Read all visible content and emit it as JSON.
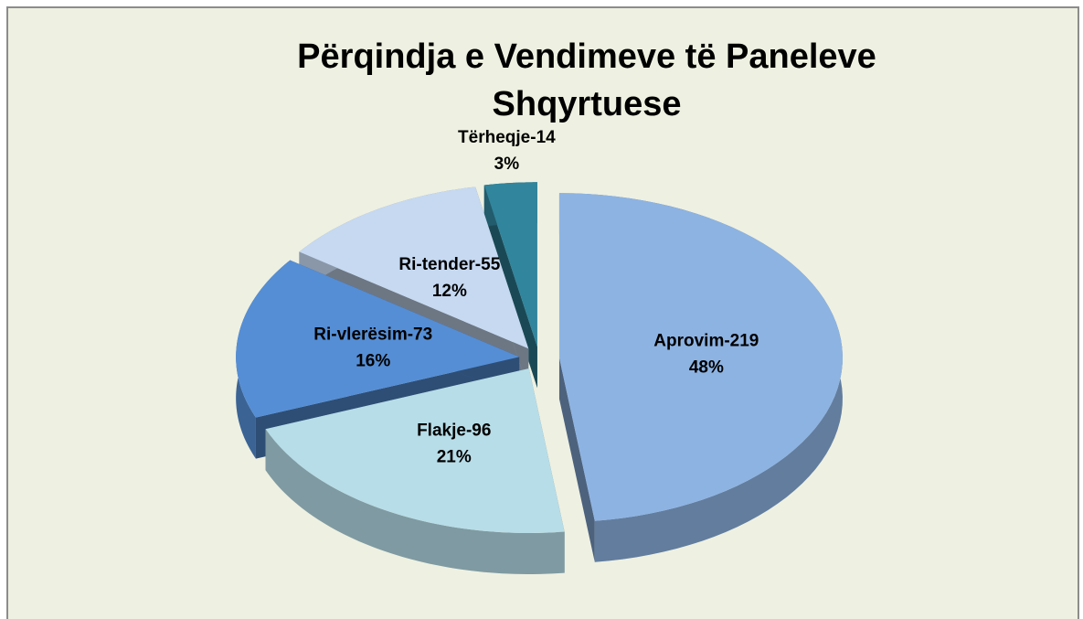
{
  "chart_data": {
    "type": "pie",
    "title": "Përqindja e Vendimeve të Paneleve Shqyrtuese",
    "categories": [
      "Aprovim-219",
      "Flakje-96",
      "Ri-vlerësim-73",
      "Ri-tender-55",
      "Tërheqje-14"
    ],
    "values": [
      48,
      21,
      16,
      12,
      3
    ],
    "value_labels": [
      "48%",
      "21%",
      "16%",
      "12%",
      "3%"
    ],
    "colors": [
      "#8db3e2",
      "#b7dde8",
      "#558ed5",
      "#c6d9f1",
      "#31859c"
    ]
  }
}
